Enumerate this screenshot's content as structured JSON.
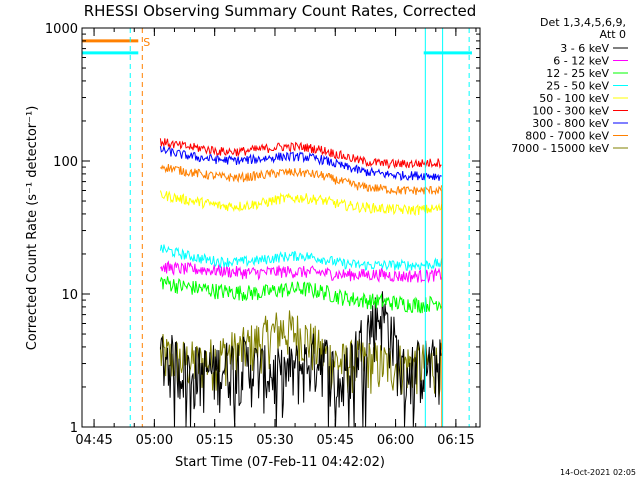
{
  "chart_data": {
    "type": "line",
    "title": "RHESSI Observing Summary Count Rates, Corrected",
    "xlabel": "Start Time (07-Feb-11 04:42:02)",
    "ylabel": "Corrected Count Rate (s⁻¹ detector⁻¹)",
    "x_unit": "minutes after 04:42:02",
    "xlim": [
      0,
      99
    ],
    "ylim": [
      1,
      1000
    ],
    "yscale": "log",
    "x_ticks": [
      {
        "label": "04:45",
        "value": 3
      },
      {
        "label": "05:00",
        "value": 18
      },
      {
        "label": "05:15",
        "value": 33
      },
      {
        "label": "05:30",
        "value": 48
      },
      {
        "label": "05:45",
        "value": 63
      },
      {
        "label": "06:00",
        "value": 78
      },
      {
        "label": "06:15",
        "value": 93
      }
    ],
    "y_ticks": [
      {
        "label": "1",
        "value": 1
      },
      {
        "label": "10",
        "value": 10
      },
      {
        "label": "100",
        "value": 100
      },
      {
        "label": "1000",
        "value": 1000
      }
    ],
    "legend": {
      "title_lines": [
        "Det 1,3,4,5,6,9,",
        "Att 0"
      ],
      "placement": "right"
    },
    "data_window": {
      "start": 19.5,
      "end": 89.5
    },
    "series": [
      {
        "name": "3 - 6 keV",
        "color": "#000000",
        "values": [
          3.5,
          3.0,
          2.6,
          2.8,
          3.2,
          2.7,
          2.5,
          2.9,
          3.6,
          2.0,
          4.5,
          7.5,
          2.6,
          3.0,
          3.0
        ]
      },
      {
        "name": "6 - 12 keV",
        "color": "#ff00ff",
        "values": [
          16,
          15.5,
          15.3,
          15,
          14.5,
          14.5,
          14.8,
          14.7,
          14.5,
          14,
          14,
          14,
          13.6,
          13.7,
          14
        ]
      },
      {
        "name": "12 - 25 keV",
        "color": "#00ff00",
        "values": [
          12.5,
          11.5,
          11,
          10.5,
          10.3,
          10.2,
          10.8,
          11,
          10.5,
          9.5,
          9,
          8.8,
          8.5,
          8.3,
          8.8
        ]
      },
      {
        "name": "25 - 50 keV",
        "color": "#00ffff",
        "values": [
          22,
          20,
          18.5,
          17.5,
          17.5,
          18,
          19,
          19.5,
          18.5,
          17,
          16.5,
          16.5,
          16.5,
          16.5,
          17
        ]
      },
      {
        "name": "50 - 100 keV",
        "color": "#ffff00",
        "values": [
          56,
          52,
          49,
          46,
          46,
          48,
          52,
          53,
          51,
          47,
          45,
          44,
          43,
          43,
          44
        ]
      },
      {
        "name": "100 - 300 keV",
        "color": "#ff0000",
        "values": [
          140,
          130,
          125,
          118,
          118,
          123,
          128,
          128,
          122,
          110,
          100,
          96,
          95,
          96,
          98
        ]
      },
      {
        "name": "300 - 800 keV",
        "color": "#0000ff",
        "values": [
          122,
          112,
          106,
          102,
          101,
          104,
          108,
          108,
          103,
          92,
          84,
          80,
          78,
          78,
          77
        ]
      },
      {
        "name": "800 - 7000 keV",
        "color": "#ff8000",
        "values": [
          92,
          85,
          80,
          76,
          75,
          78,
          82,
          82,
          78,
          70,
          64,
          62,
          60,
          60,
          61
        ]
      },
      {
        "name": "7000 - 15000 keV",
        "color": "#808000",
        "values": [
          3.5,
          3.2,
          3.0,
          3.5,
          3.8,
          4.5,
          5.5,
          5.0,
          3.6,
          3.0,
          3.2,
          3.0,
          3.0,
          3.0,
          3.0
        ]
      }
    ],
    "saa_marker": {
      "label": "S",
      "value": 800,
      "x_start": 0,
      "x_end": 14
    },
    "cyan_status_bars": [
      {
        "x_start": 0,
        "x_end": 14,
        "value": 650
      },
      {
        "x_start": 85,
        "x_end": 97,
        "value": 650
      }
    ],
    "vertical_markers": [
      {
        "color": "#00ffff",
        "style": "dashed",
        "x": 12
      },
      {
        "color": "#ff8000",
        "style": "dashed",
        "x": 15
      },
      {
        "color": "#00ffff",
        "style": "solid",
        "x": 85.4
      },
      {
        "color": "#00ffff",
        "style": "solid",
        "x": 89.7
      },
      {
        "color": "#00ffff",
        "style": "dashed",
        "x": 96.3
      },
      {
        "color": "#00ffff",
        "style": "solid",
        "x": 0
      }
    ],
    "timestamp": "14-Oct-2021 02:05"
  }
}
